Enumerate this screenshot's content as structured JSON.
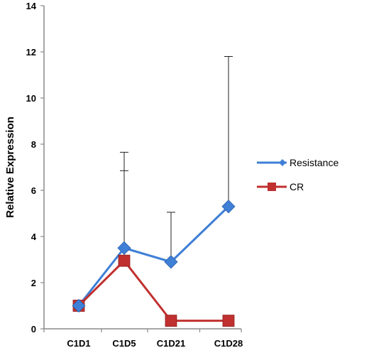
{
  "chart_data": {
    "type": "line",
    "title": "",
    "xlabel": "",
    "ylabel": "Relative Expression",
    "categories": [
      "C1D1",
      "C1D5",
      "C1D21",
      "C1D28"
    ],
    "ylim": [
      0,
      14
    ],
    "yticks": [
      0,
      2,
      4,
      6,
      8,
      10,
      12,
      14
    ],
    "grid": false,
    "legend_position": "right",
    "series": [
      {
        "name": "Resistance",
        "values": [
          1.0,
          3.5,
          2.9,
          5.3
        ],
        "error_upper": [
          null,
          7.65,
          5.05,
          11.8
        ],
        "color": "#3f7fd6",
        "marker": "diamond"
      },
      {
        "name": "CR",
        "values": [
          1.0,
          2.95,
          0.35,
          0.35
        ],
        "error_upper": [
          null,
          6.85,
          null,
          null
        ],
        "color": "#c0302f",
        "marker": "square"
      }
    ]
  }
}
